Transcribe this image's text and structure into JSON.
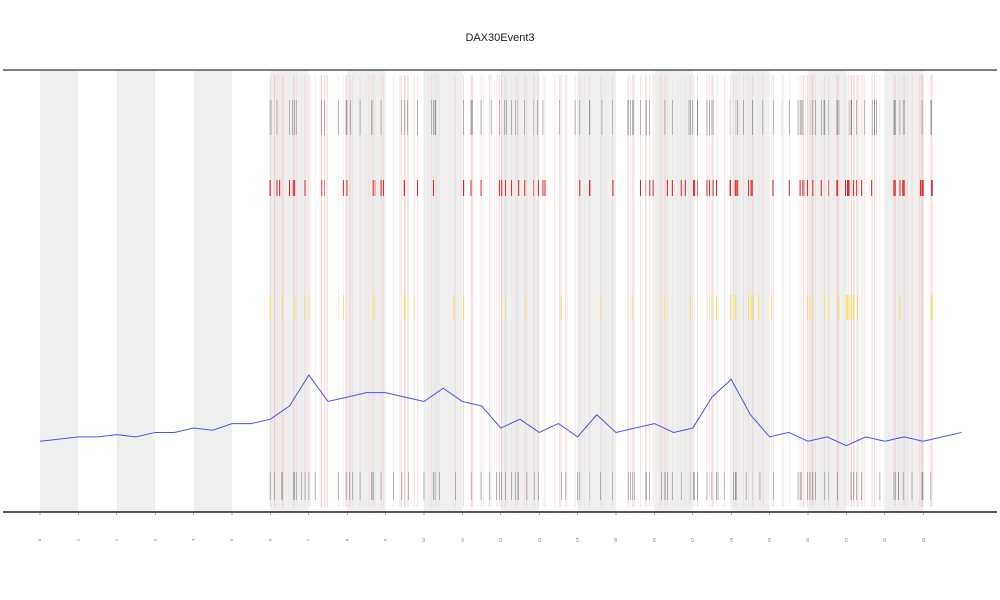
{
  "chart_data": {
    "type": "line",
    "title": "DAX30Event3",
    "x": [
      0,
      0.5,
      1,
      1.5,
      2,
      2.5,
      3,
      3.5,
      4,
      4.5,
      5,
      5.5,
      6,
      6.5,
      7,
      7.5,
      8,
      8.5,
      9,
      9.5,
      10,
      10.5,
      11,
      11.5,
      12,
      12.5,
      13,
      13.5,
      14,
      14.5,
      15,
      15.5,
      16,
      16.5,
      17,
      17.5,
      18,
      18.5,
      19,
      19.5,
      20,
      20.5,
      21,
      21.5,
      22,
      22.5,
      23,
      23.5,
      24
    ],
    "series": [
      {
        "color": "#4a55e8",
        "values": [
          16,
          16.5,
          17,
          17,
          17.5,
          17,
          18,
          18,
          19,
          18.5,
          20,
          20,
          21,
          24,
          31,
          25,
          26,
          27,
          27,
          26,
          25,
          28,
          25,
          24,
          19,
          21,
          18,
          20,
          17,
          22,
          18,
          19,
          20,
          18,
          19,
          26,
          30,
          22,
          17,
          18,
          16,
          17,
          15,
          17,
          16,
          17,
          16,
          17,
          18
        ]
      }
    ],
    "xlim": [
      -1,
      25
    ],
    "ylim": [
      0,
      100
    ],
    "xticks": [
      0,
      1,
      2,
      3,
      4,
      5,
      6,
      7,
      8,
      9,
      10,
      11,
      12,
      13,
      14,
      15,
      16,
      17,
      18,
      19,
      20,
      21,
      22,
      23
    ]
  }
}
